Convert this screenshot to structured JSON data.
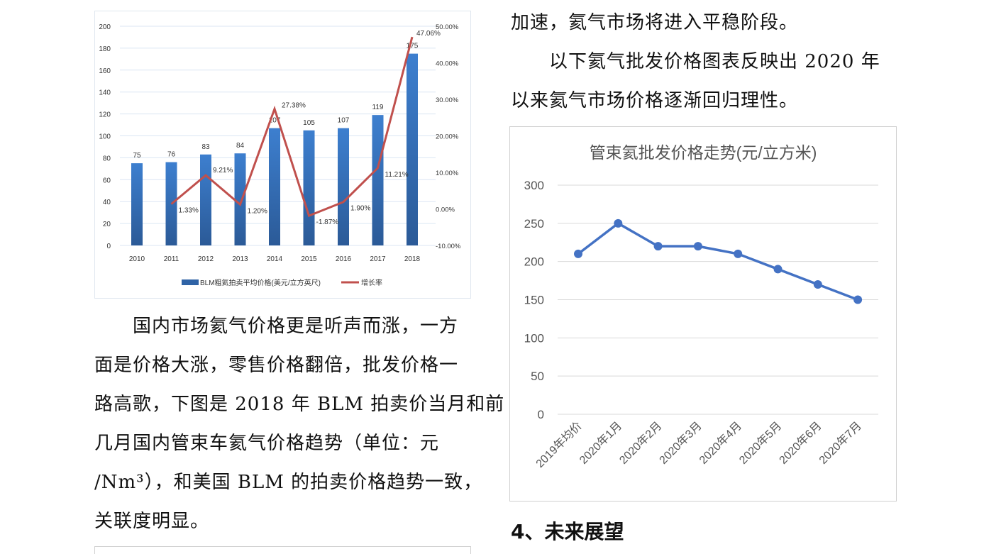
{
  "left_text": {
    "lines": [
      "　　国内市场氦气价格更是听声而涨，一方",
      "面是价格大涨，零售价格翻倍，批发价格一",
      "路高歌，下图是 2018 年 BLM 拍卖价当月和前",
      "几月国内管束车氦气价格趋势（单位：元",
      "/Nm³），和美国 BLM 的拍卖价格趋势一致，",
      "关联度明显。"
    ]
  },
  "right_text": {
    "lines": [
      "加速，氦气市场将进入平稳阶段。",
      "　　以下氦气批发价格图表反映出 2020 年",
      "以来氦气市场价格逐渐回归理性。"
    ]
  },
  "section_heading": "4、未来展望",
  "chart_data": [
    {
      "type": "bar+line",
      "categories": [
        "2010",
        "2011",
        "2012",
        "2013",
        "2014",
        "2015",
        "2016",
        "2017",
        "2018"
      ],
      "series": [
        {
          "name": "BLM粗氦拍卖平均价格(美元/立方英尺)",
          "type": "bar",
          "axis": "left",
          "values": [
            75,
            76,
            83,
            84,
            107,
            105,
            107,
            119,
            175
          ],
          "labels": [
            "75",
            "76",
            "83",
            "84",
            "107",
            "105",
            "107",
            "119",
            "175"
          ],
          "color": "#3a78c3"
        },
        {
          "name": "增长率",
          "type": "line",
          "axis": "right",
          "values": [
            null,
            1.33,
            9.21,
            1.2,
            27.38,
            -1.87,
            1.9,
            11.21,
            47.06
          ],
          "labels": [
            "",
            "1.33%",
            "9.21%",
            "1.20%",
            "27.38%",
            "-1.87%",
            "1.90%",
            "11.21%",
            "47.06%"
          ],
          "color": "#c0504d"
        }
      ],
      "ylim": [
        0,
        200
      ],
      "yticks": [
        "0",
        "20",
        "40",
        "60",
        "80",
        "100",
        "120",
        "140",
        "160",
        "180",
        "200"
      ],
      "y2lim": [
        -10,
        50
      ],
      "y2ticks": [
        "-10.00%",
        "0.00%",
        "10.00%",
        "20.00%",
        "30.00%",
        "40.00%",
        "50.00%"
      ],
      "legend": "bottom",
      "grid": true
    },
    {
      "type": "line",
      "title": "管束氦批发价格走势(元/立方米)",
      "categories": [
        "2019年均价",
        "2020年1月",
        "2020年2月",
        "2020年3月",
        "2020年4月",
        "2020年5月",
        "2020年6月",
        "2020年7月"
      ],
      "values": [
        210,
        250,
        220,
        220,
        210,
        190,
        170,
        150
      ],
      "ylim": [
        0,
        300
      ],
      "yticks": [
        "0",
        "50",
        "100",
        "150",
        "200",
        "250",
        "300"
      ],
      "color": "#4472c4",
      "grid": true
    }
  ]
}
